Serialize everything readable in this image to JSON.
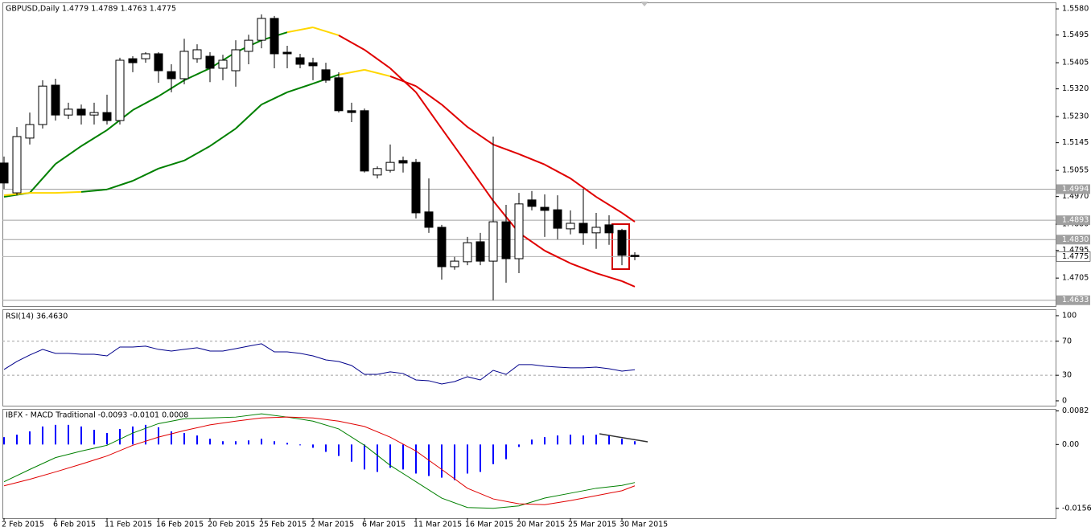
{
  "chart_data": [
    {
      "type": "candlestick",
      "title": "GBPUSD,Daily  1.4779 1.4789 1.4763 1.4775",
      "categories": [
        "2 Feb 2015",
        null,
        null,
        null,
        "6 Feb 2015",
        null,
        null,
        null,
        "11 Feb 2015",
        null,
        null,
        null,
        "16 Feb 2015",
        null,
        null,
        null,
        "20 Feb 2015",
        null,
        null,
        null,
        "25 Feb 2015",
        null,
        null,
        null,
        "2 Mar 2015",
        null,
        null,
        null,
        "6 Mar 2015",
        null,
        null,
        null,
        "11 Mar 2015",
        null,
        null,
        null,
        "16 Mar 2015",
        null,
        null,
        null,
        "20 Mar 2015",
        null,
        null,
        null,
        "25 Mar 2015",
        null,
        null,
        null,
        "30 Mar 2015",
        null
      ],
      "open": [
        1.5079,
        1.4982,
        1.516,
        1.5204,
        1.5332,
        1.5235,
        1.5254,
        1.5235,
        1.5243,
        1.5217,
        1.5418,
        1.5418,
        1.5434,
        1.5376,
        1.5353,
        1.5418,
        1.5426,
        1.5387,
        1.5379,
        1.5442,
        1.5478,
        1.5549,
        1.5439,
        1.5421,
        1.5405,
        1.5382,
        1.5356,
        1.5249,
        1.5249,
        1.504,
        1.5055,
        1.5087,
        1.5081,
        1.492,
        1.487,
        1.4742,
        1.4758,
        1.4823,
        1.476,
        1.4888,
        1.4768,
        1.4959,
        1.4935,
        1.4927,
        1.4865,
        1.4883,
        1.4852,
        1.4878,
        1.486,
        1.4779
      ],
      "high": [
        1.51,
        1.5196,
        1.5243,
        1.5348,
        1.5353,
        1.5275,
        1.5269,
        1.5275,
        1.5301,
        1.5421,
        1.5426,
        1.5439,
        1.5439,
        1.54,
        1.5483,
        1.5465,
        1.5439,
        1.5431,
        1.5478,
        1.5496,
        1.5562,
        1.5557,
        1.546,
        1.5434,
        1.5421,
        1.5405,
        1.5374,
        1.5275,
        1.5256,
        1.5068,
        1.5139,
        1.51,
        1.5092,
        1.5029,
        1.4878,
        1.4774,
        1.4839,
        1.4852,
        1.5165,
        1.4943,
        1.4982,
        1.4988,
        1.4977,
        1.4974,
        1.4925,
        1.4995,
        1.4917,
        1.4909,
        1.4865,
        1.4789
      ],
      "low": [
        1.4995,
        1.4974,
        1.5139,
        1.5191,
        1.5217,
        1.5222,
        1.5204,
        1.5204,
        1.5204,
        1.5204,
        1.5374,
        1.5405,
        1.534,
        1.5309,
        1.5335,
        1.5405,
        1.5342,
        1.5348,
        1.5327,
        1.54,
        1.5452,
        1.5387,
        1.5387,
        1.5387,
        1.5348,
        1.534,
        1.5243,
        1.5212,
        1.5048,
        1.5029,
        1.5048,
        1.5048,
        1.4899,
        1.4852,
        1.47,
        1.4732,
        1.4747,
        1.4747,
        1.4633,
        1.469,
        1.4721,
        1.4925,
        1.4839,
        1.4831,
        1.4847,
        1.4813,
        1.48,
        1.4813,
        1.4747,
        1.4763
      ],
      "close": [
        1.5014,
        1.5165,
        1.5204,
        1.5329,
        1.5235,
        1.5254,
        1.5235,
        1.5243,
        1.5217,
        1.5413,
        1.5405,
        1.5434,
        1.5379,
        1.5353,
        1.5442,
        1.5447,
        1.5387,
        1.5413,
        1.5447,
        1.5478,
        1.5549,
        1.5434,
        1.5434,
        1.54,
        1.5395,
        1.5348,
        1.5249,
        1.5243,
        1.5053,
        1.5061,
        1.5081,
        1.5079,
        1.4917,
        1.487,
        1.4742,
        1.476,
        1.482,
        1.476,
        1.4888,
        1.4768,
        1.4946,
        1.4938,
        1.4925,
        1.4867,
        1.4883,
        1.4852,
        1.487,
        1.4852,
        1.4779,
        1.4775
      ],
      "up_color": "#ffffff",
      "down_color": "#000000",
      "ylim": [
        1.4614,
        1.5601
      ],
      "yticks": [
        {
          "value": 1.558,
          "label": "1.5580"
        },
        {
          "value": 1.5495,
          "label": "1.5495"
        },
        {
          "value": 1.5405,
          "label": "1.5405"
        },
        {
          "value": 1.532,
          "label": "1.5320"
        },
        {
          "value": 1.523,
          "label": "1.5230"
        },
        {
          "value": 1.5145,
          "label": "1.5145"
        },
        {
          "value": 1.5055,
          "label": "1.5055"
        },
        {
          "value": 1.497,
          "label": "1.4970"
        },
        {
          "value": 1.488,
          "label": "1.4880"
        },
        {
          "value": 1.4795,
          "label": "1.4795"
        },
        {
          "value": 1.4705,
          "label": "1.4705"
        }
      ],
      "hlines": [
        {
          "value": 1.4994,
          "label": "1.4994"
        },
        {
          "value": 1.4893,
          "label": "1.4893"
        },
        {
          "value": 1.483,
          "label": "1.4830"
        },
        {
          "value": 1.4633,
          "label": "1.4633"
        }
      ],
      "color_up": "#008000",
      "color_down": "#e00000",
      "color_turn": "#ffd700",
      "lines": [
        {
          "x": [
            0,
            2,
            4,
            6,
            8,
            10,
            12,
            14,
            16,
            18,
            20,
            22,
            24,
            26,
            28,
            30,
            32,
            34,
            36,
            38,
            40,
            42,
            44,
            46,
            48,
            49
          ],
          "values": [
            1.4969,
            1.4982,
            1.5076,
            1.5134,
            1.5186,
            1.5251,
            1.5296,
            1.5348,
            1.5387,
            1.5439,
            1.5478,
            1.5504,
            1.552,
            1.5494,
            1.5447,
            1.5387,
            1.5309,
            1.5191,
            1.5074,
            1.4956,
            1.4852,
            1.4794,
            1.4753,
            1.4721,
            1.4695,
            1.4677
          ]
        },
        {
          "x": [
            0,
            2,
            4,
            6,
            8,
            10,
            12,
            14,
            16,
            18,
            20,
            22,
            24,
            26,
            28,
            30,
            32,
            34,
            36,
            38,
            40,
            42,
            44,
            46,
            48,
            49
          ],
          "values": [
            1.4974,
            1.4982,
            1.4982,
            1.4985,
            1.4993,
            1.5021,
            1.5061,
            1.5087,
            1.5134,
            1.5191,
            1.5269,
            1.5309,
            1.5337,
            1.5366,
            1.5382,
            1.5361,
            1.5329,
            1.5269,
            1.5196,
            1.5139,
            1.5108,
            1.5074,
            1.5029,
            1.4969,
            1.4917,
            1.4888
          ]
        }
      ]
    },
    {
      "type": "line",
      "title": "RSI(14) 36.4630",
      "values": [
        36.8,
        46.2,
        53.8,
        60.4,
        55.7,
        55.7,
        54.7,
        54.7,
        52.8,
        63.2,
        63.2,
        64.2,
        60.4,
        58.5,
        60.4,
        62.3,
        58.5,
        58.5,
        61.3,
        64.2,
        67.0,
        57.5,
        57.5,
        55.7,
        52.8,
        48.1,
        46.2,
        41.5,
        31.1,
        31.1,
        34.0,
        32.1,
        24.5,
        23.6,
        19.8,
        22.6,
        28.3,
        24.5,
        35.8,
        31.1,
        42.5,
        42.5,
        40.6,
        39.6,
        38.7,
        38.7,
        39.6,
        37.7,
        34.9,
        36.5
      ],
      "color": "#00008b",
      "ylim": [
        -5.7,
        107.5
      ],
      "yticks": [
        100,
        70,
        30,
        0
      ],
      "levels": [
        70,
        30
      ]
    },
    {
      "type": "macd",
      "title": "IBFX - MACD Traditional -0.0093 -0.0101 0.0008",
      "histogram": [
        0.0018,
        0.0024,
        0.0032,
        0.0044,
        0.0048,
        0.0048,
        0.0044,
        0.0036,
        0.0028,
        0.0038,
        0.0044,
        0.0048,
        0.0042,
        0.0032,
        0.0028,
        0.0022,
        0.0014,
        0.0008,
        0.0008,
        0.001,
        0.0014,
        0.0008,
        0.0004,
        -0.0002,
        -0.0008,
        -0.0018,
        -0.0028,
        -0.0042,
        -0.0061,
        -0.0067,
        -0.0057,
        -0.0061,
        -0.0071,
        -0.0077,
        -0.0081,
        -0.0087,
        -0.0071,
        -0.0067,
        -0.0048,
        -0.0036,
        -0.0006,
        0.0012,
        0.0018,
        0.0022,
        0.0024,
        0.0022,
        0.0024,
        0.0022,
        0.0014,
        0.0008
      ],
      "histogram_color": "#0000ff",
      "series": [
        {
          "color": "#008000",
          "x": [
            0,
            2,
            4,
            6,
            8,
            10,
            12,
            14,
            16,
            18,
            20,
            22,
            24,
            26,
            28,
            30,
            32,
            34,
            36,
            38,
            40,
            42,
            44,
            46,
            48,
            49
          ],
          "values": [
            -0.0091,
            -0.0061,
            -0.0032,
            -0.0016,
            -0.0002,
            0.0028,
            0.0051,
            0.0063,
            0.0065,
            0.0067,
            0.0075,
            0.0067,
            0.0057,
            0.0038,
            -0.0002,
            -0.0051,
            -0.0091,
            -0.0131,
            -0.0154,
            -0.0156,
            -0.015,
            -0.0131,
            -0.0119,
            -0.0107,
            -0.01,
            -0.0093
          ]
        },
        {
          "color": "#e00000",
          "x": [
            0,
            2,
            4,
            6,
            8,
            10,
            12,
            14,
            16,
            18,
            20,
            22,
            24,
            26,
            28,
            30,
            32,
            34,
            36,
            38,
            40,
            42,
            44,
            46,
            48,
            49
          ],
          "values": [
            -0.0101,
            -0.0085,
            -0.0067,
            -0.0048,
            -0.0028,
            -0.0002,
            0.0018,
            0.0034,
            0.0048,
            0.0057,
            0.0065,
            0.0067,
            0.0065,
            0.0057,
            0.0044,
            0.0018,
            -0.0016,
            -0.0061,
            -0.0107,
            -0.0133,
            -0.0145,
            -0.0147,
            -0.0137,
            -0.0125,
            -0.0113,
            -0.0101
          ]
        }
      ],
      "ylim": [
        -0.018,
        0.0087
      ],
      "yticks": [
        {
          "value": 0.0082,
          "label": "0.0082"
        },
        {
          "value": 0,
          "label": "0.00"
        },
        {
          "value": -0.0156,
          "label": "-0.0156"
        }
      ]
    }
  ]
}
